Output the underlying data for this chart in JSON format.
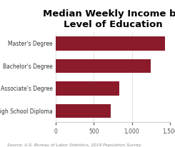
{
  "title": "Median Weekly Income by\nLevel of Education",
  "categories": [
    "High School Diploma",
    "Associate's Degree",
    "Bachelor's Degree",
    "Master's Degree"
  ],
  "values": [
    718,
    836,
    1248,
    1434
  ],
  "bar_color": "#8B1A2B",
  "xlim": [
    0,
    1500
  ],
  "xticks": [
    0,
    500,
    1000,
    1500
  ],
  "xtick_labels": [
    "0",
    "500",
    "1,000",
    "1,500"
  ],
  "source_text": "Source: U.S. Bureau of Labor Statistics, 2019 Population Survey",
  "background_color": "#ffffff",
  "title_fontsize": 9.5,
  "label_fontsize": 5.5,
  "tick_fontsize": 5.5,
  "source_fontsize": 4.2
}
